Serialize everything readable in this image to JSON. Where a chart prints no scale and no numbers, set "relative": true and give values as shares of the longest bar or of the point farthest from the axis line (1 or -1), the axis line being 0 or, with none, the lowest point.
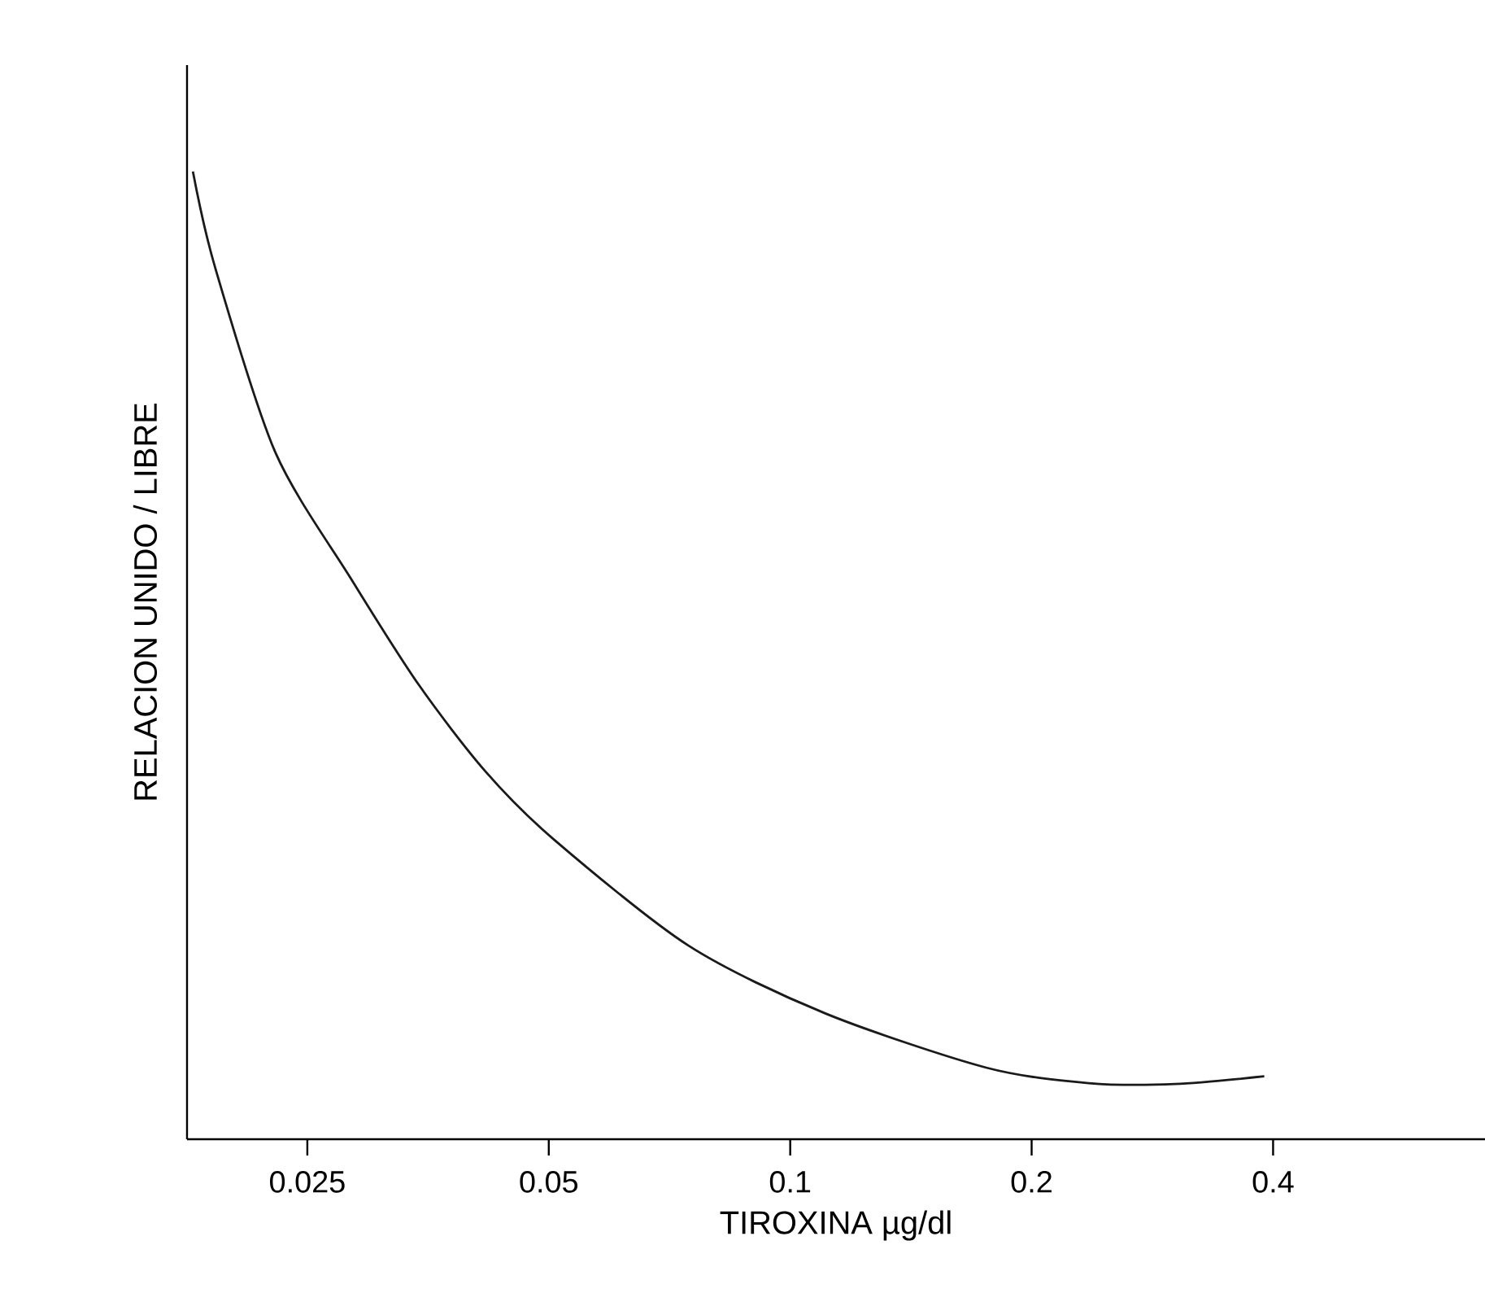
{
  "chart_data": {
    "type": "line",
    "xlabel": "TIROXINA µg/dl",
    "ylabel": "RELACION UNIDO / LIBRE",
    "relative": true,
    "log": "x",
    "tick_labels": "x",
    "xlim": [
      0.0177,
      0.735
    ],
    "xticks": [
      0.025,
      0.05,
      0.1,
      0.2,
      0.4
    ],
    "series": [
      {
        "color": "#1a1a1a",
        "x": [
          0.018,
          0.0192,
          0.0228,
          0.0283,
          0.0344,
          0.0417,
          0.0507,
          0.0747,
          0.1106,
          0.1755,
          0.2356,
          0.3017,
          0.39
        ],
        "values": [
          1.0,
          0.9,
          0.71,
          0.58,
          0.47,
          0.38,
          0.31,
          0.2,
          0.13,
          0.074,
          0.058,
          0.057,
          0.065
        ]
      }
    ]
  }
}
